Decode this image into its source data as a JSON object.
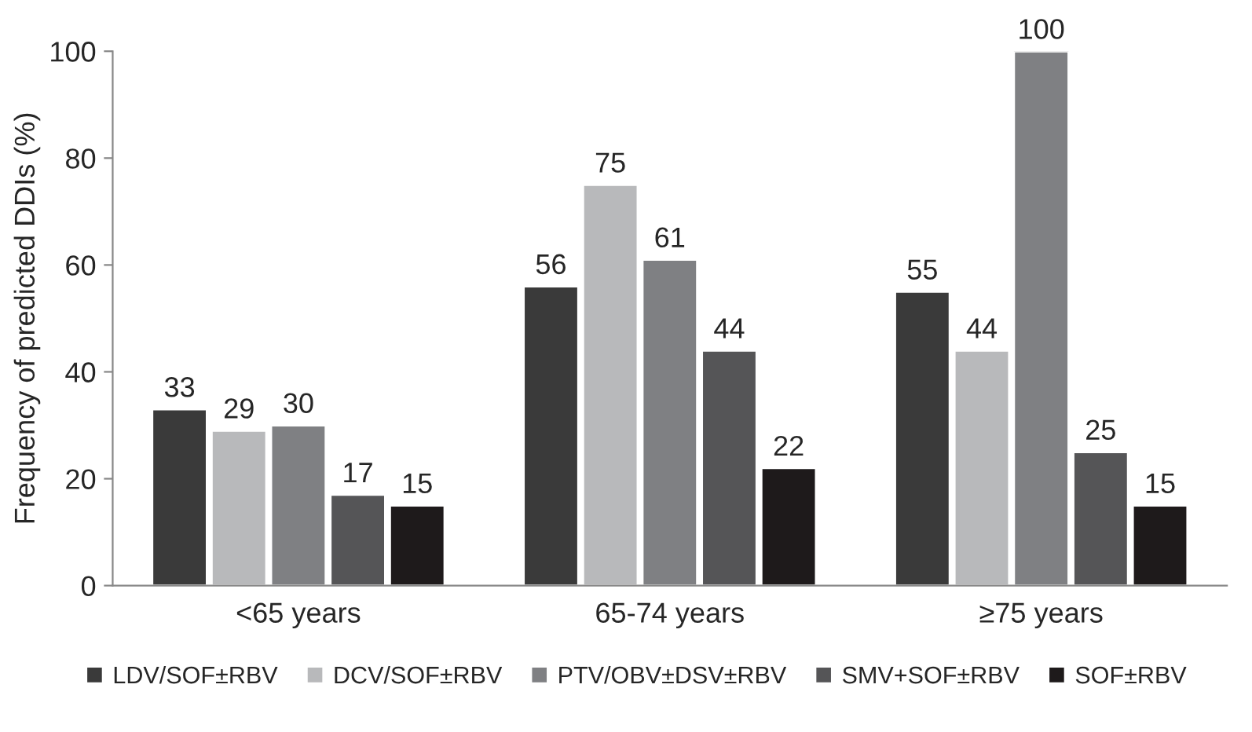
{
  "chart_data": {
    "type": "bar",
    "ylabel": "Frequency of predicted DDIs (%)",
    "categories": [
      "<65 years",
      "65-74 years",
      "≥75 years"
    ],
    "series": [
      {
        "name": "LDV/SOF±RBV",
        "color": "#3a3a3a",
        "values": [
          33,
          56,
          55
        ]
      },
      {
        "name": "DCV/SOF±RBV",
        "color": "#b8b9bb",
        "values": [
          29,
          75,
          44
        ]
      },
      {
        "name": "PTV/OBV±DSV±RBV",
        "color": "#7f8083",
        "values": [
          30,
          61,
          100
        ]
      },
      {
        "name": "SMV+SOF±RBV",
        "color": "#555557",
        "values": [
          17,
          44,
          25
        ]
      },
      {
        "name": "SOF±RBV",
        "color": "#1e1a1b",
        "values": [
          15,
          22,
          15
        ]
      }
    ],
    "ylim": [
      0,
      100
    ],
    "yticks": [
      0,
      20,
      40,
      60,
      80,
      100
    ],
    "data_labels": true,
    "grid": false,
    "legend": "bottom"
  }
}
